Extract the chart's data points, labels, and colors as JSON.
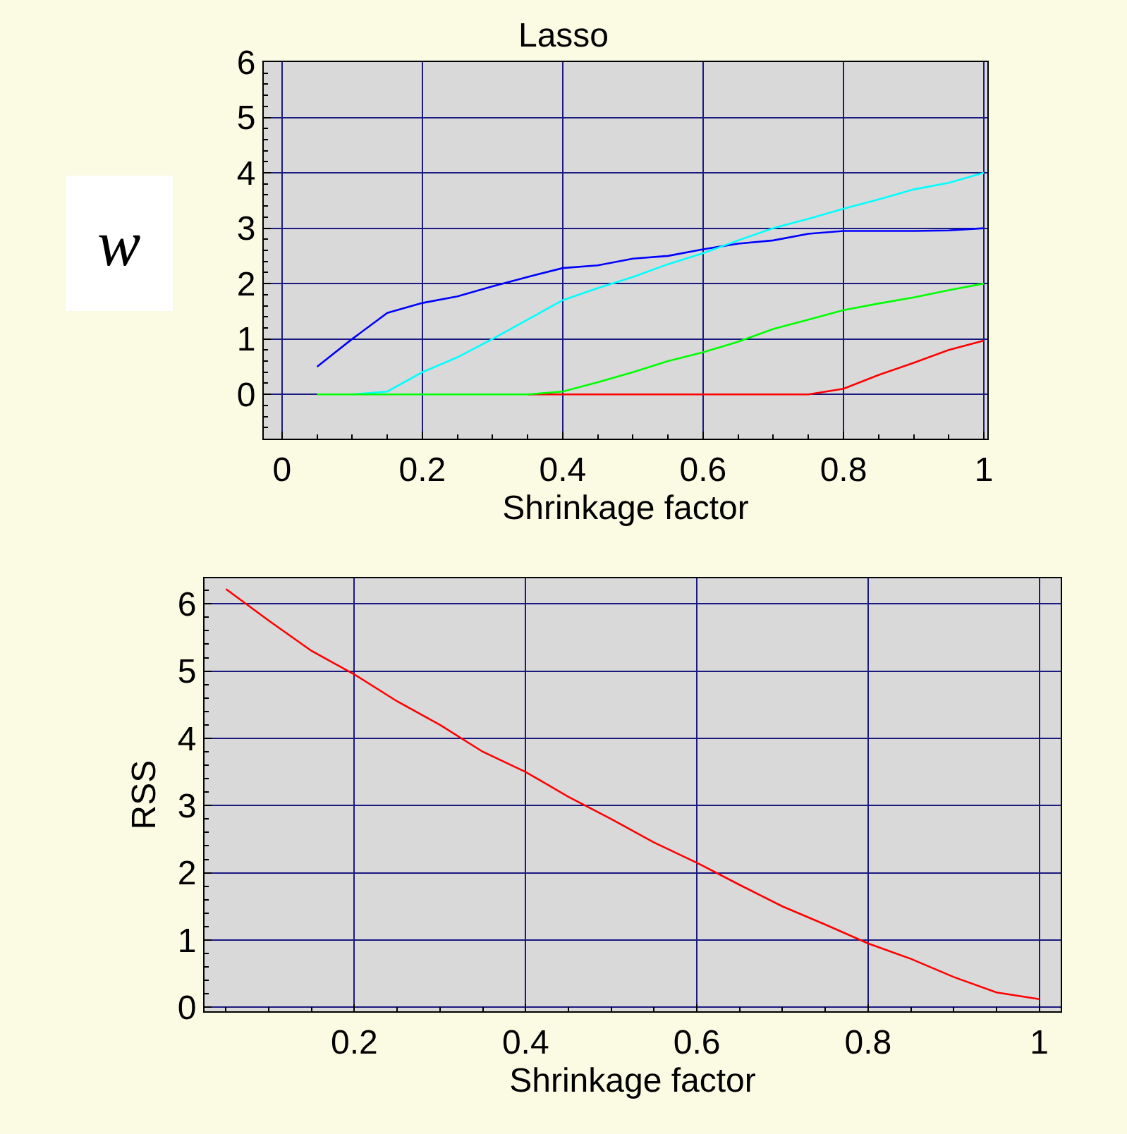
{
  "chart_data": [
    {
      "type": "line",
      "title": "Lasso",
      "xlabel": "Shrinkage factor",
      "ylabel": "w",
      "x": [
        0.05,
        0.1,
        0.15,
        0.2,
        0.25,
        0.3,
        0.35,
        0.4,
        0.45,
        0.5,
        0.55,
        0.6,
        0.65,
        0.7,
        0.75,
        0.8,
        0.85,
        0.9,
        0.95,
        1
      ],
      "series": [
        {
          "color": "#0000ff",
          "values": [
            0.5,
            1.0,
            1.47,
            1.65,
            1.77,
            1.95,
            2.12,
            2.28,
            2.33,
            2.45,
            2.5,
            2.62,
            2.72,
            2.78,
            2.9,
            2.95,
            2.95,
            2.95,
            2.96,
            3.0
          ]
        },
        {
          "color": "#00ffff",
          "values": [
            null,
            0,
            0.05,
            0.4,
            0.67,
            1.0,
            1.35,
            1.7,
            1.92,
            2.12,
            2.35,
            2.55,
            2.78,
            3.0,
            3.17,
            3.35,
            3.52,
            3.7,
            3.82,
            4.0
          ]
        },
        {
          "color": "#ff0000",
          "values": [
            null,
            null,
            null,
            null,
            null,
            null,
            0,
            0,
            0,
            0,
            0,
            0,
            0,
            0,
            0,
            0.1,
            0.35,
            0.57,
            0.8,
            0.97
          ]
        },
        {
          "color": "#00ff00",
          "values": [
            0,
            0,
            0,
            0,
            0,
            0,
            0,
            0.05,
            0.22,
            0.4,
            0.6,
            0.76,
            0.95,
            1.18,
            1.35,
            1.52,
            1.64,
            1.75,
            1.88,
            2.0
          ]
        }
      ],
      "xlim": [
        -0.026,
        1.005
      ],
      "xticks": [
        0,
        0.2,
        0.4,
        0.6,
        0.8,
        1
      ],
      "ylim": [
        -0.8,
        6
      ],
      "yticks": [
        0,
        1,
        2,
        3,
        4,
        5,
        6
      ],
      "grid": true,
      "marker": "none",
      "line_style": "solid"
    },
    {
      "type": "line",
      "xlabel": "Shrinkage factor",
      "ylabel": "RSS",
      "x": [
        0.05,
        0.1,
        0.15,
        0.2,
        0.25,
        0.3,
        0.35,
        0.4,
        0.45,
        0.5,
        0.55,
        0.6,
        0.65,
        0.7,
        0.75,
        0.8,
        0.85,
        0.9,
        0.95,
        1
      ],
      "series": [
        {
          "color": "#ff0000",
          "values": [
            6.22,
            5.75,
            5.3,
            4.95,
            4.55,
            4.2,
            3.8,
            3.5,
            3.13,
            2.8,
            2.45,
            2.15,
            1.82,
            1.5,
            1.23,
            0.95,
            0.72,
            0.45,
            0.22,
            0.12
          ]
        }
      ],
      "xlim": [
        0.025,
        1.025
      ],
      "xticks": [
        0.2,
        0.4,
        0.6,
        0.8,
        1
      ],
      "ylim": [
        -0.06,
        6.38
      ],
      "yticks": [
        0,
        1,
        2,
        3,
        4,
        5,
        6
      ],
      "grid": true,
      "marker": "none",
      "line_style": "solid"
    }
  ]
}
